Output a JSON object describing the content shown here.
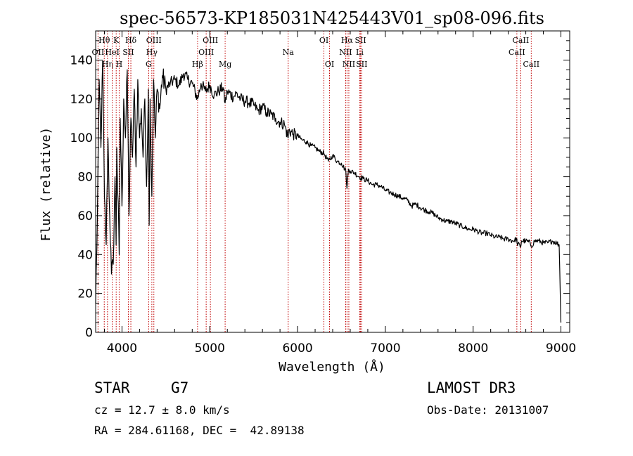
{
  "chart_data": {
    "type": "line",
    "title": "spec-56573-KP185031N425443V01_sp08-096.fits",
    "xlabel": "Wavelength (Å)",
    "ylabel": "Flux (relative)",
    "xlim": [
      3700,
      9100
    ],
    "ylim": [
      0,
      155
    ],
    "xticks": [
      4000,
      5000,
      6000,
      7000,
      8000,
      9000
    ],
    "yticks": [
      0,
      20,
      40,
      60,
      80,
      100,
      120,
      140
    ],
    "grid": false,
    "series": [
      {
        "name": "spectrum",
        "x": [
          3700,
          3720,
          3740,
          3760,
          3780,
          3800,
          3820,
          3840,
          3860,
          3880,
          3900,
          3920,
          3933,
          3940,
          3968,
          3980,
          4000,
          4020,
          4040,
          4060,
          4080,
          4101,
          4120,
          4140,
          4160,
          4180,
          4200,
          4220,
          4240,
          4260,
          4280,
          4300,
          4310,
          4320,
          4340,
          4360,
          4380,
          4400,
          4430,
          4460,
          4500,
          4550,
          4600,
          4650,
          4700,
          4750,
          4800,
          4861,
          4900,
          4950,
          5000,
          5050,
          5100,
          5150,
          5175,
          5200,
          5270,
          5300,
          5350,
          5400,
          5450,
          5500,
          5550,
          5600,
          5650,
          5700,
          5750,
          5800,
          5850,
          5893,
          5900,
          5950,
          6000,
          6050,
          6100,
          6150,
          6200,
          6250,
          6300,
          6350,
          6400,
          6450,
          6500,
          6550,
          6563,
          6580,
          6600,
          6650,
          6700,
          6750,
          6800,
          6850,
          6900,
          6950,
          7000,
          7050,
          7100,
          7150,
          7200,
          7250,
          7300,
          7350,
          7400,
          7450,
          7500,
          7550,
          7600,
          7650,
          7700,
          7750,
          7800,
          7850,
          7900,
          7950,
          8000,
          8050,
          8100,
          8150,
          8200,
          8250,
          8300,
          8350,
          8400,
          8450,
          8498,
          8500,
          8542,
          8550,
          8600,
          8650,
          8662,
          8700,
          8750,
          8800,
          8850,
          8900,
          8950,
          8980,
          9000
        ],
        "y": [
          15,
          60,
          130,
          95,
          140,
          70,
          45,
          100,
          60,
          30,
          35,
          80,
          45,
          95,
          40,
          110,
          65,
          120,
          100,
          135,
          60,
          110,
          90,
          125,
          85,
          130,
          100,
          115,
          90,
          120,
          75,
          125,
          55,
          120,
          70,
          130,
          100,
          125,
          115,
          132,
          125,
          128,
          130,
          127,
          133,
          130,
          128,
          120,
          128,
          124,
          127,
          122,
          124,
          126,
          118,
          124,
          121,
          123,
          120,
          119,
          118,
          117,
          114,
          116,
          113,
          112,
          110,
          108,
          107,
          100,
          104,
          102,
          101,
          99,
          98,
          96,
          95,
          93,
          92,
          88,
          91,
          88,
          87,
          83,
          74,
          84,
          83,
          82,
          80,
          79,
          78,
          76,
          76,
          75,
          73,
          72,
          71,
          70,
          69,
          68,
          65,
          66,
          64,
          63,
          62,
          61,
          59,
          58,
          57,
          57,
          56,
          55,
          54,
          53,
          53,
          52,
          51,
          51,
          50,
          49,
          49,
          48,
          48,
          47,
          48,
          46,
          44,
          47,
          47,
          46,
          44,
          47,
          47,
          46,
          46,
          47,
          46,
          45,
          5
        ]
      }
    ],
    "lines": [
      {
        "name": "H-theta",
        "label": "Hθ",
        "wavelength": 3798,
        "row": 1
      },
      {
        "name": "O-II",
        "label": "OII",
        "wavelength": 3727,
        "row": 2
      },
      {
        "name": "H-eta",
        "label": "Hη",
        "wavelength": 3835,
        "row": 3
      },
      {
        "name": "K",
        "label": "K",
        "wavelength": 3934,
        "row": 1
      },
      {
        "name": "He-I",
        "label": "HeI",
        "wavelength": 3889,
        "row": 2
      },
      {
        "name": "H",
        "label": "H",
        "wavelength": 3968,
        "row": 3
      },
      {
        "name": "S-II-4072",
        "label": "SII",
        "wavelength": 4072,
        "row": 2
      },
      {
        "name": "H-delta",
        "label": "Hδ",
        "wavelength": 4101,
        "row": 1
      },
      {
        "name": "O-III-4363",
        "label": "OIII",
        "wavelength": 4363,
        "row": 1
      },
      {
        "name": "H-gamma",
        "label": "Hγ",
        "wavelength": 4340,
        "row": 2
      },
      {
        "name": "G-band",
        "label": "G",
        "wavelength": 4304,
        "row": 3
      },
      {
        "name": "H-beta",
        "label": "Hβ",
        "wavelength": 4861,
        "row": 3
      },
      {
        "name": "O-III-5007",
        "label": "OIII",
        "wavelength": 5007,
        "row": 1
      },
      {
        "name": "O-III-4959",
        "label": "OIII",
        "wavelength": 4959,
        "row": 2
      },
      {
        "name": "Mg",
        "label": "Mg",
        "wavelength": 5175,
        "row": 3
      },
      {
        "name": "Na",
        "label": "Na",
        "wavelength": 5893,
        "row": 2
      },
      {
        "name": "O-I-6300",
        "label": "OI",
        "wavelength": 6300,
        "row": 1
      },
      {
        "name": "O-I-6364",
        "label": "OI",
        "wavelength": 6364,
        "row": 3
      },
      {
        "name": "H-alpha",
        "label": "Hα",
        "wavelength": 6563,
        "row": 1
      },
      {
        "name": "N-II-6548",
        "label": "NII",
        "wavelength": 6548,
        "row": 2
      },
      {
        "name": "N-II-6584",
        "label": "NII",
        "wavelength": 6584,
        "row": 3
      },
      {
        "name": "S-II-6717",
        "label": "SII",
        "wavelength": 6717,
        "row": 1
      },
      {
        "name": "Li",
        "label": "Li",
        "wavelength": 6708,
        "row": 2
      },
      {
        "name": "S-II-6731",
        "label": "SII",
        "wavelength": 6731,
        "row": 3
      },
      {
        "name": "Ca-II-8542",
        "label": "CaII",
        "wavelength": 8542,
        "row": 1
      },
      {
        "name": "Ca-II-8498",
        "label": "CaII",
        "wavelength": 8498,
        "row": 2
      },
      {
        "name": "Ca-II-8662",
        "label": "CaII",
        "wavelength": 8662,
        "row": 3
      }
    ]
  },
  "info": {
    "class_label": "STAR",
    "subclass": "G7",
    "survey": "LAMOST DR3",
    "redshift_text": "cz = 12.7 ± 8.0 km/s",
    "obs_date_text": "Obs-Date: 20131007",
    "coords_text": "RA = 284.61168, DEC =  42.89138"
  }
}
